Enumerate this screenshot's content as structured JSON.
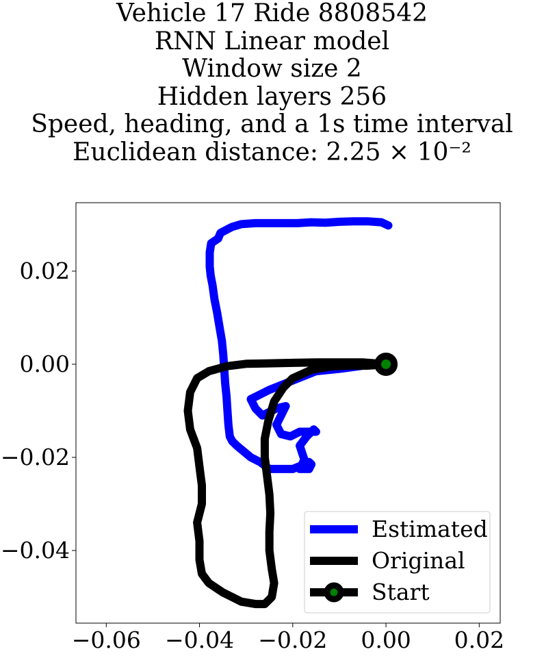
{
  "chart_data": {
    "type": "line",
    "title_lines": [
      "Vehicle 17 Ride 8808542",
      "RNN Linear model",
      "Window size 2",
      "Hidden layers 256",
      "Speed, heading, and a 1s time interval",
      "Euclidean distance: 2.25 × 10⁻²"
    ],
    "xlim": [
      -0.0665,
      0.0245
    ],
    "ylim": [
      -0.0556,
      0.0347
    ],
    "x_ticks": [
      -0.06,
      -0.04,
      -0.02,
      0.0,
      0.02
    ],
    "x_tick_labels": [
      "−0.06",
      "−0.04",
      "−0.02",
      "0.00",
      "0.02"
    ],
    "y_ticks": [
      0.02,
      0.0,
      -0.02,
      -0.04
    ],
    "y_tick_labels": [
      "0.02",
      "0.00",
      "−0.02",
      "−0.04"
    ],
    "grid": false,
    "legend_position": "lower right",
    "series": [
      {
        "name": "Estimated",
        "color": "#0000ff",
        "x": [
          0.0005,
          -0.001,
          -0.004,
          -0.007,
          -0.01,
          -0.013,
          -0.016,
          -0.019,
          -0.022,
          -0.025,
          -0.028,
          -0.031,
          -0.033,
          -0.034,
          -0.0355,
          -0.036,
          -0.0375,
          -0.0378,
          -0.0378,
          -0.0376,
          -0.0372,
          -0.0368,
          -0.0362,
          -0.0357,
          -0.0352,
          -0.0349,
          -0.0347,
          -0.0345,
          -0.0342,
          -0.034,
          -0.0338,
          -0.0335,
          -0.033,
          -0.032,
          -0.029,
          -0.027,
          -0.025,
          -0.023,
          -0.02,
          -0.0175,
          -0.0165,
          -0.016,
          -0.0165,
          -0.0185,
          -0.0175,
          -0.0185,
          -0.017,
          -0.0155,
          -0.015,
          -0.0185,
          -0.0205,
          -0.0225,
          -0.0235,
          -0.0215,
          -0.0235,
          -0.0265,
          -0.028,
          -0.029,
          -0.025,
          -0.02,
          -0.015,
          -0.01,
          -0.005,
          0.0
        ],
        "y": [
          0.0298,
          0.0305,
          0.0307,
          0.0307,
          0.0306,
          0.0304,
          0.0305,
          0.0303,
          0.0303,
          0.0303,
          0.0303,
          0.0301,
          0.0295,
          0.029,
          0.0282,
          0.027,
          0.026,
          0.024,
          0.021,
          0.019,
          0.017,
          0.014,
          0.011,
          0.008,
          0.005,
          0.002,
          -0.001,
          -0.004,
          -0.007,
          -0.01,
          -0.013,
          -0.0155,
          -0.0165,
          -0.0175,
          -0.02,
          -0.021,
          -0.0225,
          -0.0225,
          -0.0225,
          -0.0215,
          -0.021,
          -0.0215,
          -0.0225,
          -0.0225,
          -0.0205,
          -0.0175,
          -0.0155,
          -0.014,
          -0.0145,
          -0.0145,
          -0.0155,
          -0.015,
          -0.013,
          -0.009,
          -0.0095,
          -0.011,
          -0.0095,
          -0.0075,
          -0.0055,
          -0.0035,
          -0.0015,
          -0.001,
          -0.0003,
          0.0
        ]
      },
      {
        "name": "Original",
        "color": "#000000",
        "x": [
          0.0,
          -0.005,
          -0.01,
          -0.015,
          -0.02,
          -0.025,
          -0.03,
          -0.034,
          -0.038,
          -0.0405,
          -0.042,
          -0.0425,
          -0.042,
          -0.0405,
          -0.04,
          -0.0395,
          -0.0395,
          -0.0405,
          -0.04,
          -0.04,
          -0.0395,
          -0.038,
          -0.035,
          -0.031,
          -0.028,
          -0.026,
          -0.0245,
          -0.024,
          -0.0245,
          -0.025,
          -0.025,
          -0.0248,
          -0.025,
          -0.0255,
          -0.026,
          -0.026,
          -0.0252,
          -0.024,
          -0.022,
          -0.02,
          -0.016,
          -0.012,
          -0.008,
          -0.004,
          -0.001,
          0.0
        ],
        "y": [
          0.0,
          0.0004,
          0.0004,
          0.0004,
          0.0003,
          0.0002,
          0.0001,
          -0.0004,
          -0.0015,
          -0.003,
          -0.006,
          -0.01,
          -0.014,
          -0.018,
          -0.022,
          -0.026,
          -0.03,
          -0.034,
          -0.038,
          -0.042,
          -0.045,
          -0.047,
          -0.049,
          -0.051,
          -0.0515,
          -0.0515,
          -0.05,
          -0.047,
          -0.044,
          -0.04,
          -0.036,
          -0.032,
          -0.028,
          -0.024,
          -0.02,
          -0.016,
          -0.012,
          -0.008,
          -0.005,
          -0.003,
          -0.0012,
          -0.0005,
          -0.0003,
          -0.0003,
          -0.0001,
          0.0
        ]
      }
    ],
    "start": {
      "name": "Start",
      "x": 0.0,
      "y": 0.0,
      "marker_color": "#008000",
      "marker_edge_color": "#000000"
    }
  }
}
